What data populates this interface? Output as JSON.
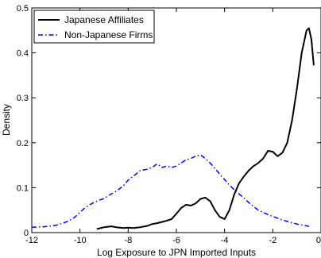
{
  "chart_data": {
    "type": "line",
    "title": "",
    "xlabel": "Log Exposure to JPN Imported Inputs",
    "ylabel": "Density",
    "xlim": [
      -12,
      0
    ],
    "ylim": [
      0,
      0.5
    ],
    "xticks": [
      -12,
      -10,
      -8,
      -6,
      -4,
      -2,
      0
    ],
    "yticks": [
      0,
      0.1,
      0.2,
      0.3,
      0.4,
      0.5
    ],
    "grid": false,
    "legend_position": "top-left",
    "series": [
      {
        "name": "Japanese Affiliates",
        "color": "#000000",
        "style": "solid",
        "x": [
          -9.3,
          -9.0,
          -8.7,
          -8.5,
          -8.2,
          -8.0,
          -7.8,
          -7.5,
          -7.2,
          -7.0,
          -6.8,
          -6.5,
          -6.2,
          -6.0,
          -5.8,
          -5.6,
          -5.4,
          -5.2,
          -5.0,
          -4.8,
          -4.6,
          -4.4,
          -4.2,
          -4.0,
          -3.8,
          -3.6,
          -3.4,
          -3.2,
          -3.0,
          -2.8,
          -2.6,
          -2.4,
          -2.2,
          -2.0,
          -1.8,
          -1.6,
          -1.4,
          -1.2,
          -1.0,
          -0.8,
          -0.6,
          -0.5,
          -0.4,
          -0.3
        ],
        "y": [
          0.008,
          0.012,
          0.014,
          0.012,
          0.01,
          0.011,
          0.01,
          0.012,
          0.015,
          0.019,
          0.021,
          0.025,
          0.03,
          0.042,
          0.055,
          0.062,
          0.06,
          0.065,
          0.075,
          0.078,
          0.07,
          0.05,
          0.035,
          0.03,
          0.05,
          0.085,
          0.11,
          0.125,
          0.138,
          0.148,
          0.155,
          0.165,
          0.182,
          0.18,
          0.17,
          0.178,
          0.2,
          0.25,
          0.32,
          0.4,
          0.45,
          0.455,
          0.43,
          0.372
        ]
      },
      {
        "name": "Non-Japanese Firms",
        "color": "#0000ff",
        "style": "dash-dot",
        "x": [
          -12.0,
          -11.5,
          -11.0,
          -10.5,
          -10.2,
          -10.0,
          -9.8,
          -9.5,
          -9.2,
          -9.0,
          -8.8,
          -8.5,
          -8.2,
          -8.0,
          -7.8,
          -7.5,
          -7.2,
          -7.0,
          -6.8,
          -6.6,
          -6.4,
          -6.2,
          -6.0,
          -5.8,
          -5.6,
          -5.4,
          -5.2,
          -5.0,
          -4.8,
          -4.6,
          -4.4,
          -4.2,
          -4.0,
          -3.8,
          -3.6,
          -3.4,
          -3.2,
          -3.0,
          -2.8,
          -2.6,
          -2.4,
          -2.2,
          -2.0,
          -1.8,
          -1.6,
          -1.4,
          -1.2,
          -1.0,
          -0.8,
          -0.6,
          -0.5
        ],
        "y": [
          0.012,
          0.013,
          0.016,
          0.025,
          0.035,
          0.045,
          0.055,
          0.065,
          0.072,
          0.076,
          0.083,
          0.092,
          0.104,
          0.117,
          0.125,
          0.138,
          0.141,
          0.145,
          0.153,
          0.145,
          0.148,
          0.145,
          0.148,
          0.155,
          0.162,
          0.165,
          0.17,
          0.173,
          0.165,
          0.155,
          0.143,
          0.13,
          0.118,
          0.106,
          0.095,
          0.086,
          0.077,
          0.067,
          0.058,
          0.05,
          0.045,
          0.04,
          0.036,
          0.032,
          0.028,
          0.025,
          0.022,
          0.019,
          0.017,
          0.015,
          0.014
        ]
      }
    ]
  }
}
